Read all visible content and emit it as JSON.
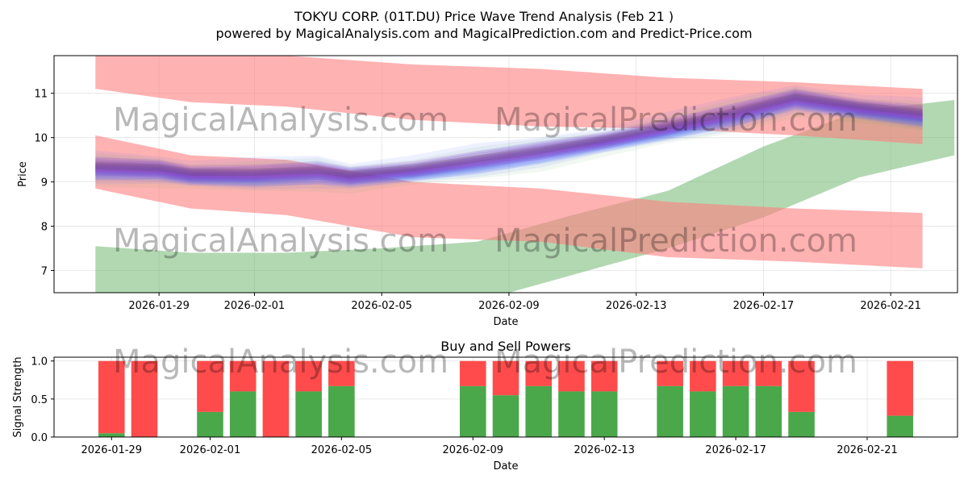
{
  "title": "TOKYU CORP. (01T.DU) Price Wave Trend Analysis (Feb 21 )",
  "subtitle": "powered by MagicalAnalysis.com and MagicalPrediction.com and Predict-Price.com",
  "watermarks": [
    "MagicalAnalysis.com",
    "MagicalPrediction.com",
    "MagicalAnalysis.com",
    "MagicalPrediction.com",
    "MagicalAnalysis.com",
    "MagicalPrediction.com"
  ],
  "colors": {
    "red_band": "#ff7f7f",
    "green_band": "#66b266",
    "blue_wave": "#4060ff",
    "purple_wave": "#8a3fc4",
    "dark_wave": "#444444",
    "buy": "#4aa84a",
    "sell": "#ff4b4b"
  },
  "chart_data": [
    {
      "type": "area",
      "title": "",
      "xlabel": "Date",
      "ylabel": "Price",
      "ylim": [
        6.5,
        11.85
      ],
      "xlim": [
        -3.3,
        25.1
      ],
      "x_origin_date": "2026-01-29",
      "x_ticks": [
        {
          "x": 0,
          "label": "2026-01-29"
        },
        {
          "x": 3,
          "label": "2026-02-01"
        },
        {
          "x": 7,
          "label": "2026-02-05"
        },
        {
          "x": 11,
          "label": "2026-02-09"
        },
        {
          "x": 15,
          "label": "2026-02-13"
        },
        {
          "x": 19,
          "label": "2026-02-17"
        },
        {
          "x": 23,
          "label": "2026-02-21"
        }
      ],
      "y_ticks": [
        7,
        8,
        9,
        10,
        11
      ],
      "grid": true,
      "series": [
        {
          "name": "upper red band",
          "color_key": "red_band",
          "x": [
            -2,
            1,
            4,
            8,
            12,
            16,
            20,
            24
          ],
          "upper": [
            11.9,
            11.9,
            11.85,
            11.65,
            11.55,
            11.35,
            11.25,
            11.1
          ],
          "lower": [
            11.1,
            10.8,
            10.7,
            10.4,
            10.25,
            10.2,
            10.05,
            9.85
          ]
        },
        {
          "name": "lower red band",
          "color_key": "red_band",
          "x": [
            -2,
            1,
            4,
            8,
            12,
            16,
            20,
            24
          ],
          "upper": [
            10.05,
            9.6,
            9.5,
            9.0,
            8.85,
            8.55,
            8.4,
            8.3
          ],
          "lower": [
            8.85,
            8.4,
            8.25,
            7.75,
            7.65,
            7.3,
            7.2,
            7.05
          ]
        },
        {
          "name": "upper green band",
          "color_key": "green_band",
          "x": [
            -2,
            1,
            4,
            7,
            10,
            13,
            16,
            19,
            22,
            25
          ],
          "upper": [
            7.55,
            7.4,
            7.4,
            7.5,
            7.65,
            8.25,
            8.8,
            9.8,
            10.6,
            10.85
          ],
          "lower": [
            6.4,
            6.1,
            6.0,
            6.0,
            6.3,
            6.9,
            7.5,
            8.2,
            9.1,
            9.6
          ]
        }
      ],
      "wave_centerline": {
        "x": [
          -2,
          0,
          1,
          3,
          5,
          6,
          8,
          10,
          12,
          14,
          16,
          18,
          20,
          22,
          24
        ],
        "y": [
          9.3,
          9.25,
          9.15,
          9.15,
          9.2,
          9.1,
          9.25,
          9.45,
          9.65,
          9.9,
          10.2,
          10.5,
          10.85,
          10.65,
          10.5
        ]
      }
    },
    {
      "type": "bar",
      "title": "Buy and Sell Powers",
      "xlabel": "Date",
      "ylabel": "Signal Strength",
      "ylim": [
        0,
        1.05
      ],
      "y_ticks": [
        0.0,
        0.5,
        1.0
      ],
      "y_tick_labels": [
        "0.0",
        "0.5",
        "1.0"
      ],
      "x_ticks": [
        {
          "x": 0,
          "label": "2026-01-29"
        },
        {
          "x": 3,
          "label": "2026-02-01"
        },
        {
          "x": 7,
          "label": "2026-02-05"
        },
        {
          "x": 11,
          "label": "2026-02-09"
        },
        {
          "x": 15,
          "label": "2026-02-13"
        },
        {
          "x": 19,
          "label": "2026-02-17"
        },
        {
          "x": 23,
          "label": "2026-02-21"
        }
      ],
      "grid": true,
      "x": [
        0,
        1,
        3,
        4,
        5,
        6,
        7,
        11,
        12,
        13,
        14,
        15,
        17,
        18,
        19,
        20,
        21,
        24
      ],
      "series": [
        {
          "name": "Buy",
          "color_key": "buy",
          "values": [
            0.05,
            0.0,
            0.33,
            0.6,
            0.0,
            0.6,
            0.67,
            0.67,
            0.55,
            0.67,
            0.6,
            0.6,
            0.67,
            0.6,
            0.67,
            0.67,
            0.33,
            0.28
          ]
        },
        {
          "name": "Sell",
          "color_key": "sell",
          "values": [
            0.95,
            1.0,
            0.67,
            0.4,
            1.0,
            0.4,
            0.33,
            0.33,
            0.45,
            0.33,
            0.4,
            0.4,
            0.33,
            0.4,
            0.33,
            0.33,
            0.67,
            0.72
          ]
        }
      ]
    }
  ]
}
